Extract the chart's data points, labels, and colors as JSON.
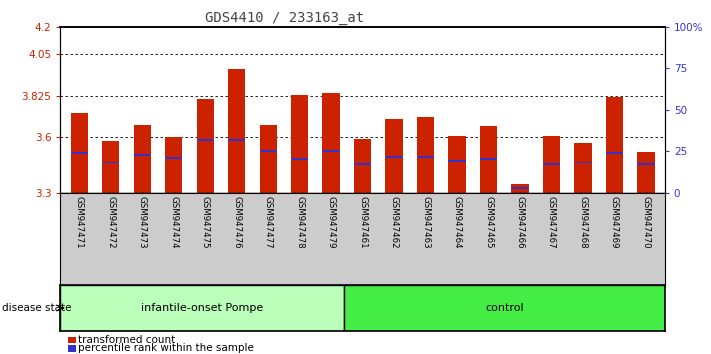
{
  "title": "GDS4410 / 233163_at",
  "samples": [
    "GSM947471",
    "GSM947472",
    "GSM947473",
    "GSM947474",
    "GSM947475",
    "GSM947476",
    "GSM947477",
    "GSM947478",
    "GSM947479",
    "GSM947461",
    "GSM947462",
    "GSM947463",
    "GSM947464",
    "GSM947465",
    "GSM947466",
    "GSM947467",
    "GSM947468",
    "GSM947469",
    "GSM947470"
  ],
  "transformed_counts": [
    3.73,
    3.58,
    3.67,
    3.6,
    3.81,
    3.97,
    3.67,
    3.83,
    3.84,
    3.59,
    3.7,
    3.71,
    3.61,
    3.66,
    3.35,
    3.61,
    3.57,
    3.82,
    3.52
  ],
  "percentile_positions": [
    3.515,
    3.465,
    3.505,
    3.49,
    3.585,
    3.585,
    3.525,
    3.485,
    3.525,
    3.455,
    3.495,
    3.495,
    3.475,
    3.485,
    3.325,
    3.455,
    3.465,
    3.515,
    3.455
  ],
  "y_min": 3.3,
  "y_max": 4.2,
  "y_ticks_left": [
    3.3,
    3.6,
    3.825,
    4.05,
    4.2
  ],
  "y_ticks_right_pct": [
    0,
    25,
    50,
    75,
    100
  ],
  "y_right_labels": [
    "0",
    "25",
    "50",
    "75",
    "100%"
  ],
  "grid_lines": [
    3.6,
    3.825,
    4.05
  ],
  "group1_label": "infantile-onset Pompe",
  "group2_label": "control",
  "group1_count": 9,
  "group2_count": 10,
  "disease_state_label": "disease state",
  "legend_red_label": "transformed count",
  "legend_blue_label": "percentile rank within the sample",
  "bar_color": "#cc2200",
  "blue_color": "#3333cc",
  "bg_color": "#ffffff",
  "group1_bg": "#bbffbb",
  "group2_bg": "#44ee44",
  "tick_area_bg": "#cccccc",
  "title_color": "#444444",
  "left_axis_color": "#cc2200",
  "right_axis_color": "#3333cc"
}
